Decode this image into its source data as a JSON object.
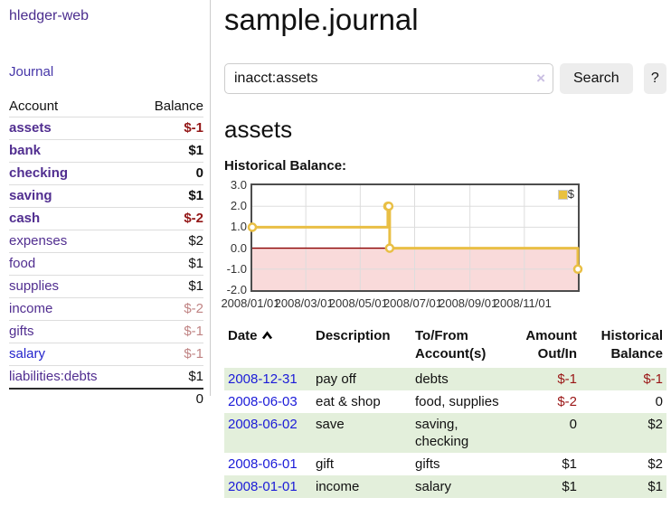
{
  "sidebar": {
    "app_title": "hledger-web",
    "nav": {
      "journal": "Journal"
    },
    "table_header": {
      "account": "Account",
      "balance": "Balance"
    },
    "accounts": [
      {
        "name": "assets",
        "balance": "$-1",
        "depth": 1,
        "bold": true,
        "negative": "strong"
      },
      {
        "name": "bank",
        "balance": "$1",
        "depth": 2,
        "bold": true,
        "negative": "none"
      },
      {
        "name": "checking",
        "balance": "0",
        "depth": 3,
        "bold": true,
        "negative": "none"
      },
      {
        "name": "saving",
        "balance": "$1",
        "depth": 3,
        "bold": true,
        "negative": "none"
      },
      {
        "name": "cash",
        "balance": "$-2",
        "depth": 2,
        "bold": true,
        "negative": "strong"
      },
      {
        "name": "expenses",
        "balance": "$2",
        "depth": 1,
        "bold": false,
        "negative": "none"
      },
      {
        "name": "food",
        "balance": "$1",
        "depth": 2,
        "bold": false,
        "negative": "none"
      },
      {
        "name": "supplies",
        "balance": "$1",
        "depth": 2,
        "bold": false,
        "negative": "none"
      },
      {
        "name": "income",
        "balance": "$-2",
        "depth": 1,
        "bold": false,
        "negative": "muted"
      },
      {
        "name": "gifts",
        "balance": "$-1",
        "depth": 2,
        "bold": false,
        "negative": "muted"
      },
      {
        "name": "salary",
        "balance": "$-1",
        "depth": 2,
        "bold": false,
        "negative": "muted",
        "link_color": "blue"
      },
      {
        "name": "liabilities:debts",
        "balance": "$1",
        "depth": 1,
        "bold": false,
        "negative": "none"
      }
    ],
    "total": "0"
  },
  "main": {
    "title": "sample.journal",
    "search": {
      "value": "inacct:assets",
      "clear_icon": "×",
      "search_button": "Search",
      "help_button": "?"
    },
    "section_heading": "assets",
    "chart_title": "Historical Balance:"
  },
  "chart_data": {
    "type": "line",
    "step": true,
    "title": "Historical Balance",
    "series": [
      {
        "name": "$",
        "color": "#e9bf45",
        "points": [
          [
            "2008-01-01",
            1
          ],
          [
            "2008-06-01",
            2
          ],
          [
            "2008-06-02",
            2
          ],
          [
            "2008-06-03",
            0
          ],
          [
            "2008-12-31",
            -1
          ]
        ]
      }
    ],
    "x_ticks": [
      "2008/01/01",
      "2008/03/01",
      "2008/05/01",
      "2008/07/01",
      "2008/09/01",
      "2008/11/01"
    ],
    "y_ticks": [
      3.0,
      2.0,
      1.0,
      0.0,
      -1.0,
      -2.0
    ],
    "ylim": [
      -2,
      3
    ],
    "xlim": [
      "2008-01-01",
      "2008-12-31"
    ],
    "grid": true,
    "legend_position": "top-right",
    "legend": "$",
    "marker": "circle-open",
    "negative_fill": "#f9dada",
    "zero_line_color": "#8b0000",
    "grid_color": "#dddddd",
    "border_color": "#4d4d4d"
  },
  "transactions": {
    "headers": {
      "date": "Date",
      "description": "Description",
      "account": "To/From Account(s)",
      "amount": "Amount Out/In",
      "balance": "Historical Balance"
    },
    "sort_icon": "chevron-up",
    "rows": [
      {
        "date": "2008-12-31",
        "description": "pay off",
        "accounts": "debts",
        "amount": "$-1",
        "balance": "$-1",
        "amount_negative": true,
        "balance_negative": true
      },
      {
        "date": "2008-06-03",
        "description": "eat & shop",
        "accounts": "food, supplies",
        "amount": "$-2",
        "balance": "0",
        "amount_negative": true,
        "balance_negative": false
      },
      {
        "date": "2008-06-02",
        "description": "save",
        "accounts": "saving, checking",
        "amount": "0",
        "balance": "$2",
        "amount_negative": false,
        "balance_negative": false
      },
      {
        "date": "2008-06-01",
        "description": "gift",
        "accounts": "gifts",
        "amount": "$1",
        "balance": "$2",
        "amount_negative": false,
        "balance_negative": false
      },
      {
        "date": "2008-01-01",
        "description": "income",
        "accounts": "salary",
        "amount": "$1",
        "balance": "$1",
        "amount_negative": false,
        "balance_negative": false
      }
    ]
  },
  "colors": {
    "account_link_purple": "#512e90",
    "account_link_blue": "#2424cc",
    "date_link_blue": "#1b1bd8",
    "negative_strong": "#931717",
    "negative_muted": "#c08484",
    "row_stripe_green": "#e3efdb",
    "chart_line_gold": "#e9bf45"
  }
}
